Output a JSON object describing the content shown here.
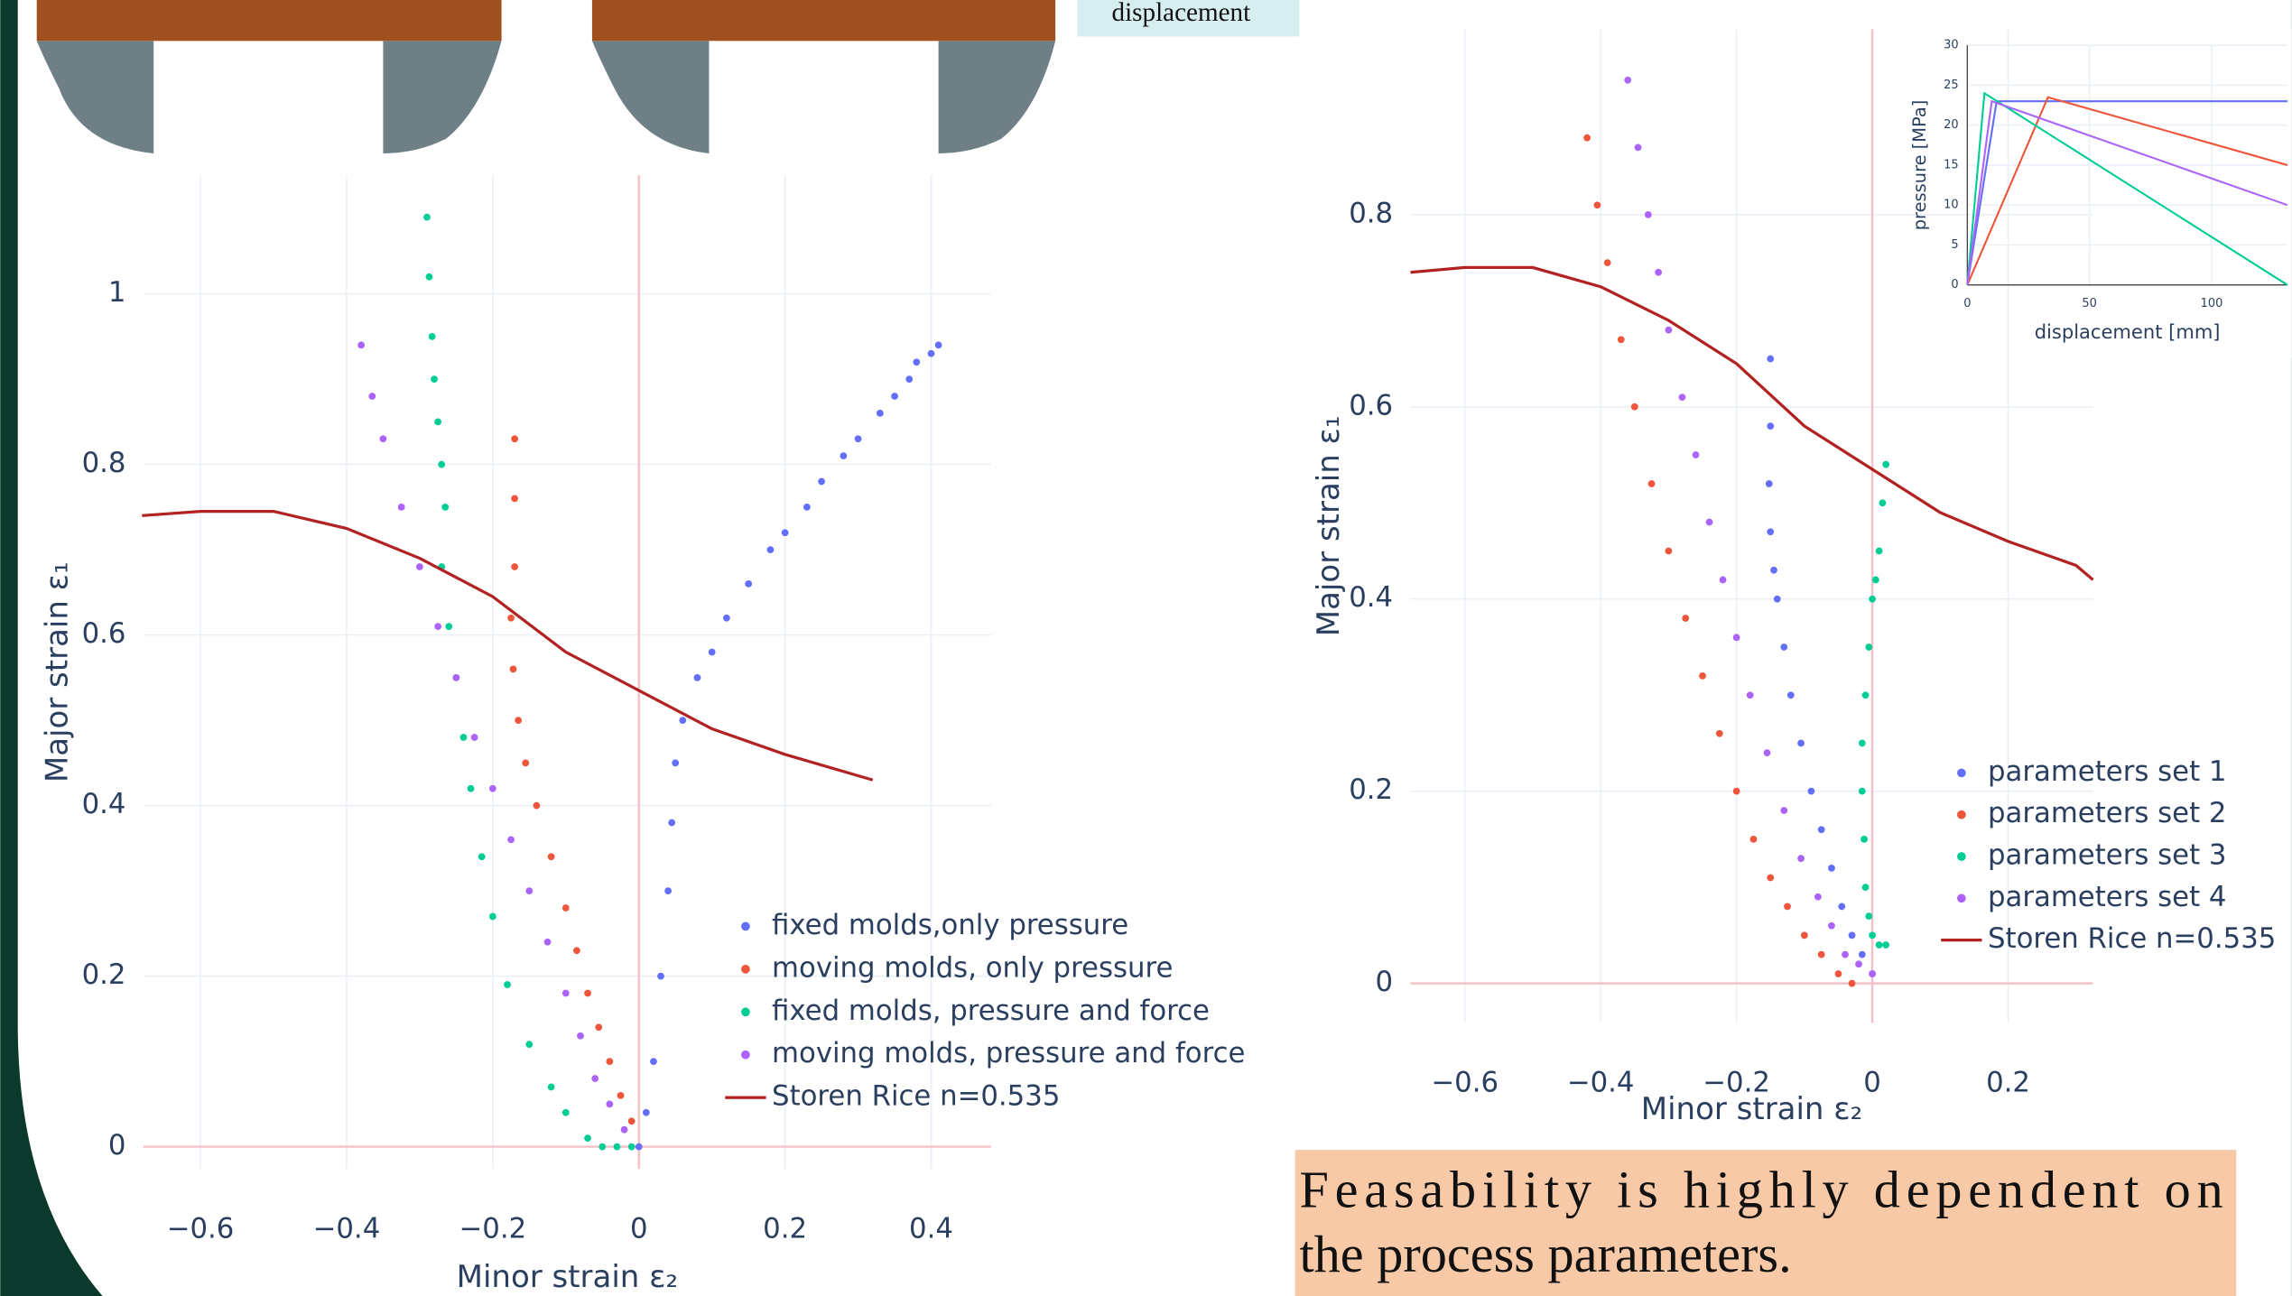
{
  "displacement_label": "displacement",
  "caption": [
    "Feasability is highly dependent on",
    "the process parameters."
  ],
  "chart_data": [
    {
      "type": "scatter",
      "x_label": "Minor strain ε₂",
      "y_label": "Major strain ε₁",
      "xlim": [
        -0.678,
        0.482
      ],
      "ylim": [
        -0.026,
        1.139
      ],
      "xticks": [
        {
          "value": -0.6,
          "label": "−0.6"
        },
        {
          "value": -0.4,
          "label": "−0.4"
        },
        {
          "value": -0.2,
          "label": "−0.2"
        },
        0,
        0.2,
        0.4
      ],
      "yticks": [
        0,
        0.2,
        0.4,
        0.6,
        0.8,
        1
      ],
      "grid": true,
      "series": [
        {
          "name": "fixed molds,only pressure",
          "color": "#636efa",
          "mode": "markers",
          "x": [
            0.0,
            0.01,
            0.02,
            0.03,
            0.04,
            0.045,
            0.05,
            0.06,
            0.08,
            0.1,
            0.12,
            0.15,
            0.18,
            0.2,
            0.23,
            0.25,
            0.28,
            0.3,
            0.33,
            0.35,
            0.37,
            0.38,
            0.4,
            0.41
          ],
          "values": [
            0.0,
            0.04,
            0.1,
            0.2,
            0.3,
            0.38,
            0.45,
            0.5,
            0.55,
            0.58,
            0.62,
            0.66,
            0.7,
            0.72,
            0.75,
            0.78,
            0.81,
            0.83,
            0.86,
            0.88,
            0.9,
            0.92,
            0.93,
            0.94
          ]
        },
        {
          "name": "moving molds, only pressure",
          "color": "#ef553b",
          "mode": "markers",
          "x": [
            -0.17,
            -0.17,
            -0.17,
            -0.175,
            -0.172,
            -0.165,
            -0.155,
            -0.14,
            -0.12,
            -0.1,
            -0.085,
            -0.07,
            -0.055,
            -0.04,
            -0.025,
            -0.01
          ],
          "values": [
            0.83,
            0.76,
            0.68,
            0.62,
            0.56,
            0.5,
            0.45,
            0.4,
            0.34,
            0.28,
            0.23,
            0.18,
            0.14,
            0.1,
            0.06,
            0.03
          ]
        },
        {
          "name": "fixed molds, pressure and force",
          "color": "#00cc96",
          "mode": "markers",
          "x": [
            -0.29,
            -0.287,
            -0.283,
            -0.28,
            -0.275,
            -0.27,
            -0.265,
            -0.27,
            -0.26,
            -0.25,
            -0.24,
            -0.23,
            -0.215,
            -0.2,
            -0.18,
            -0.15,
            -0.12,
            -0.1,
            -0.07,
            -0.05,
            -0.03,
            -0.01
          ],
          "values": [
            1.09,
            1.02,
            0.95,
            0.9,
            0.85,
            0.8,
            0.75,
            0.68,
            0.61,
            0.55,
            0.48,
            0.42,
            0.34,
            0.27,
            0.19,
            0.12,
            0.07,
            0.04,
            0.01,
            0.0,
            0.0,
            0.0
          ]
        },
        {
          "name": "moving molds, pressure and force",
          "color": "#ab63fa",
          "mode": "markers",
          "x": [
            -0.38,
            -0.365,
            -0.35,
            -0.325,
            -0.3,
            -0.275,
            -0.25,
            -0.225,
            -0.2,
            -0.175,
            -0.15,
            -0.125,
            -0.1,
            -0.08,
            -0.06,
            -0.04,
            -0.02
          ],
          "values": [
            0.94,
            0.88,
            0.83,
            0.75,
            0.68,
            0.61,
            0.55,
            0.48,
            0.42,
            0.36,
            0.3,
            0.24,
            0.18,
            0.13,
            0.08,
            0.05,
            0.02
          ]
        },
        {
          "name": "Storen Rice n=0.535",
          "color": "#b22222",
          "mode": "lines",
          "x": [
            -0.68,
            -0.6,
            -0.5,
            -0.4,
            -0.3,
            -0.2,
            -0.1,
            0,
            0.1,
            0.2,
            0.32
          ],
          "values": [
            0.74,
            0.745,
            0.745,
            0.725,
            0.69,
            0.645,
            0.58,
            0.535,
            0.49,
            0.46,
            0.43
          ]
        }
      ]
    },
    {
      "type": "scatter",
      "x_label": "Minor strain ε₂",
      "y_label": "Major strain ε₁",
      "xlim": [
        -0.68,
        0.325
      ],
      "ylim": [
        -0.041,
        0.993
      ],
      "xticks": [
        {
          "value": -0.6,
          "label": "−0.6"
        },
        {
          "value": -0.4,
          "label": "−0.4"
        },
        {
          "value": -0.2,
          "label": "−0.2"
        },
        0,
        0.2
      ],
      "yticks": [
        0,
        0.2,
        0.4,
        0.6,
        0.8
      ],
      "grid": true,
      "series": [
        {
          "name": "parameters set 1",
          "color": "#636efa",
          "mode": "markers",
          "x": [
            -0.15,
            -0.15,
            -0.152,
            -0.15,
            -0.145,
            -0.14,
            -0.13,
            -0.12,
            -0.105,
            -0.09,
            -0.075,
            -0.06,
            -0.045,
            -0.03,
            -0.015,
            0.0
          ],
          "values": [
            0.65,
            0.58,
            0.52,
            0.47,
            0.43,
            0.4,
            0.35,
            0.3,
            0.25,
            0.2,
            0.16,
            0.12,
            0.08,
            0.05,
            0.03,
            0.01
          ]
        },
        {
          "name": "parameters set 2",
          "color": "#ef553b",
          "mode": "markers",
          "x": [
            -0.42,
            -0.405,
            -0.39,
            -0.37,
            -0.35,
            -0.325,
            -0.3,
            -0.275,
            -0.25,
            -0.225,
            -0.2,
            -0.175,
            -0.15,
            -0.125,
            -0.1,
            -0.075,
            -0.05,
            -0.03
          ],
          "values": [
            0.88,
            0.81,
            0.75,
            0.67,
            0.6,
            0.52,
            0.45,
            0.38,
            0.32,
            0.26,
            0.2,
            0.15,
            0.11,
            0.08,
            0.05,
            0.03,
            0.01,
            0.0
          ]
        },
        {
          "name": "parameters set 3",
          "color": "#00cc96",
          "mode": "markers",
          "x": [
            0.02,
            0.015,
            0.01,
            0.005,
            0.0,
            -0.005,
            -0.01,
            -0.015,
            -0.015,
            -0.012,
            -0.01,
            -0.005,
            0.0,
            0.01,
            0.02
          ],
          "values": [
            0.54,
            0.5,
            0.45,
            0.42,
            0.4,
            0.35,
            0.3,
            0.25,
            0.2,
            0.15,
            0.1,
            0.07,
            0.05,
            0.04,
            0.04
          ]
        },
        {
          "name": "parameters set 4",
          "color": "#ab63fa",
          "mode": "markers",
          "x": [
            -0.36,
            -0.345,
            -0.33,
            -0.315,
            -0.3,
            -0.28,
            -0.26,
            -0.24,
            -0.22,
            -0.2,
            -0.18,
            -0.155,
            -0.13,
            -0.105,
            -0.08,
            -0.06,
            -0.04,
            -0.02,
            0.0
          ],
          "values": [
            0.94,
            0.87,
            0.8,
            0.74,
            0.68,
            0.61,
            0.55,
            0.48,
            0.42,
            0.36,
            0.3,
            0.24,
            0.18,
            0.13,
            0.09,
            0.06,
            0.03,
            0.02,
            0.01
          ]
        },
        {
          "name": "Storen Rice n=0.535",
          "color": "#b22222",
          "mode": "lines",
          "x": [
            -0.68,
            -0.6,
            -0.5,
            -0.4,
            -0.3,
            -0.2,
            -0.1,
            0,
            0.1,
            0.2,
            0.3,
            0.325
          ],
          "values": [
            0.74,
            0.745,
            0.745,
            0.725,
            0.69,
            0.645,
            0.58,
            0.535,
            0.49,
            0.46,
            0.435,
            0.42
          ]
        }
      ]
    },
    {
      "type": "line",
      "x_label": "displacement [mm]",
      "y_label": "pressure [MPa]",
      "xlim": [
        0,
        131
      ],
      "ylim": [
        0,
        30
      ],
      "xticks": [
        0,
        50,
        100
      ],
      "yticks": [
        0,
        5,
        10,
        15,
        20,
        25,
        30
      ],
      "grid": true,
      "series": [
        {
          "color": "#636efa",
          "x": [
            0,
            12,
            131
          ],
          "values": [
            0,
            23,
            23
          ]
        },
        {
          "color": "#ef553b",
          "x": [
            0,
            33,
            131
          ],
          "values": [
            0,
            23.5,
            15
          ]
        },
        {
          "color": "#00cc96",
          "x": [
            0,
            7,
            131
          ],
          "values": [
            0,
            24,
            0
          ]
        },
        {
          "color": "#ab63fa",
          "x": [
            0,
            10,
            131
          ],
          "values": [
            0,
            23,
            10
          ]
        }
      ]
    }
  ]
}
